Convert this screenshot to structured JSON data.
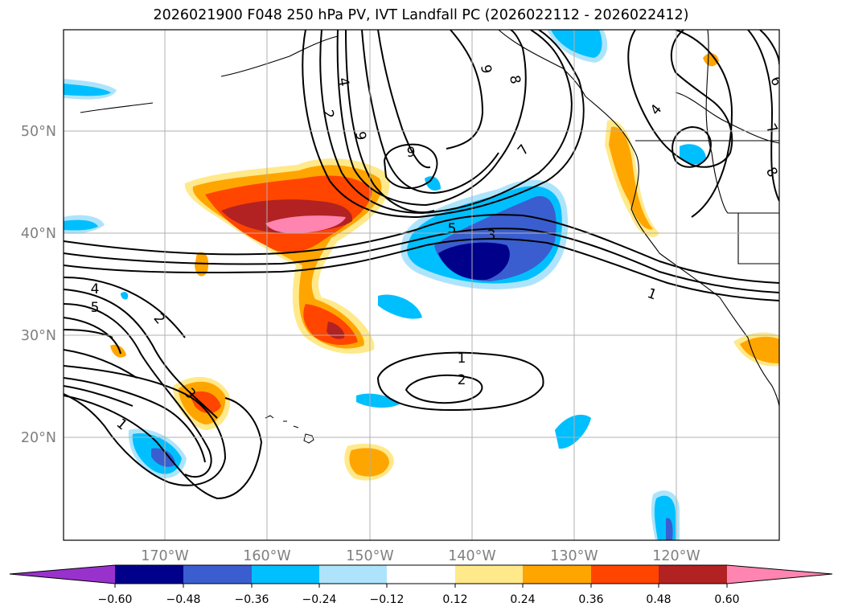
{
  "title": "2026021900 F048 250 hPa PV, IVT Landfall PC (2026022112 - 2026022412)",
  "map": {
    "projection": "plate carree",
    "lon_range": [
      -180,
      -110
    ],
    "lat_range": [
      10,
      60
    ],
    "lon_ticks": [
      "170°W",
      "160°W",
      "150°W",
      "140°W",
      "130°W",
      "120°W"
    ],
    "lat_ticks": [
      "20°N",
      "30°N",
      "40°N",
      "50°N"
    ],
    "gridlines": true,
    "contour_labels": [
      "2",
      "4",
      "6",
      "8",
      "9",
      "7",
      "6",
      "8",
      "4",
      "6",
      "7",
      "9",
      "5",
      "3",
      "1",
      "1",
      "2",
      "4",
      "5",
      "2",
      "3",
      "1"
    ]
  },
  "colorbar": {
    "ticks": [
      "−0.60",
      "−0.48",
      "−0.36",
      "−0.24",
      "−0.12",
      "0.12",
      "0.24",
      "0.36",
      "0.48",
      "0.60"
    ],
    "colors": [
      "#9932cc",
      "#00008b",
      "#3a5ecf",
      "#00bfff",
      "#aee4fb",
      "#ffffff",
      "#ffe98a",
      "#ffa500",
      "#ff4500",
      "#b22222",
      "#ff85b0"
    ]
  }
}
